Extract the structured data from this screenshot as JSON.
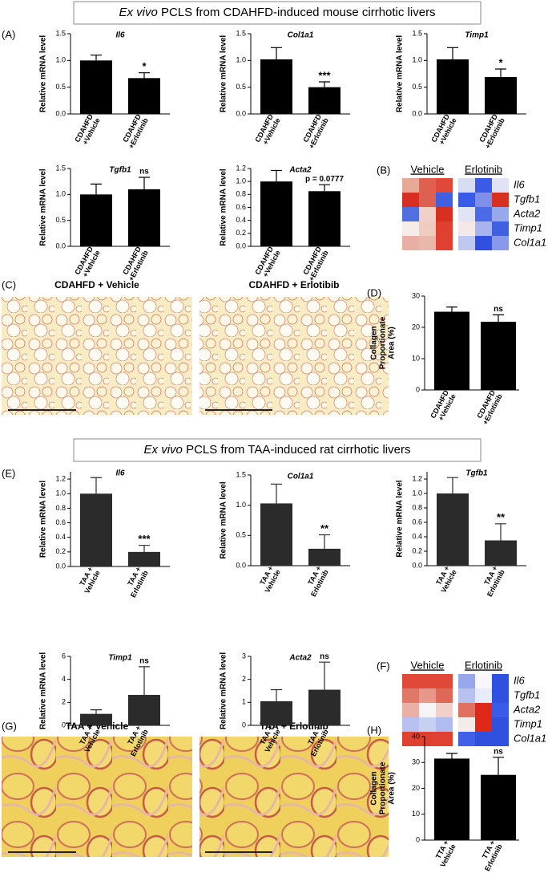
{
  "headers": [
    {
      "italic": "Ex vivo",
      "text": "PCLS from CDAHFD-induced mouse cirrhotic livers"
    },
    {
      "italic": "Ex vivo",
      "text": "PCLS from TAA-induced rat cirrhotic livers"
    }
  ],
  "panels": [
    "(A)",
    "(B)",
    "(C)",
    "(D)",
    "(E)",
    "(F)",
    "(G)",
    "(H)"
  ],
  "micrographs": [
    "CDAHFD + Vehicle",
    "CDAHFD + Erlotibib",
    "TAA + Vehicle",
    "TAA + Erlotinib"
  ],
  "chart_data": [
    {
      "type": "bar",
      "title": "Il6",
      "y_label": [
        "Relative mRNA level"
      ],
      "categories": [
        [
          "CDAHFD",
          "+Vehicle"
        ],
        [
          "CDAHFD",
          "+Erlotinib"
        ]
      ],
      "values": [
        1.0,
        0.67
      ],
      "errors": [
        0.1,
        0.1
      ],
      "color": "#000000",
      "ylim": [
        0,
        1.5
      ],
      "yticks": [
        {
          "value": 0,
          "label": "0.0"
        },
        {
          "value": 0.5,
          "label": "0.5"
        },
        {
          "value": 1,
          "label": "1.0"
        },
        {
          "value": 1.5,
          "label": "1.5"
        }
      ],
      "annotation": "*",
      "annotation_color": "#e8372c"
    },
    {
      "type": "bar",
      "title": "Col1a1",
      "y_label": [
        "Relative mRNA level"
      ],
      "categories": [
        [
          "CDAHFD",
          "+Vehicle"
        ],
        [
          "CDAHFD",
          "+Erlotinib"
        ]
      ],
      "values": [
        1.02,
        0.5
      ],
      "errors": [
        0.22,
        0.1
      ],
      "color": "#000000",
      "ylim": [
        0,
        1.5
      ],
      "yticks": [
        {
          "value": 0,
          "label": "0.0"
        },
        {
          "value": 0.5,
          "label": "0.5"
        },
        {
          "value": 1,
          "label": "1.0"
        },
        {
          "value": 1.5,
          "label": "1.5"
        }
      ],
      "annotation": "***",
      "annotation_color": "#e8372c"
    },
    {
      "type": "bar",
      "title": "Timp1",
      "y_label": [
        "Relative mRNA level"
      ],
      "categories": [
        [
          "CDAHFD",
          "+Vehicle"
        ],
        [
          "CDAHFD",
          "+Erlotinib"
        ]
      ],
      "values": [
        1.02,
        0.69
      ],
      "errors": [
        0.22,
        0.15
      ],
      "color": "#000000",
      "ylim": [
        0,
        1.5
      ],
      "yticks": [
        {
          "value": 0,
          "label": "0.0"
        },
        {
          "value": 0.5,
          "label": "0.5"
        },
        {
          "value": 1,
          "label": "1.0"
        },
        {
          "value": 1.5,
          "label": "1.5"
        }
      ],
      "annotation": "*",
      "annotation_color": "#e8372c"
    },
    {
      "type": "bar",
      "title": "Tgfb1",
      "y_label": [
        "Relative mRNA level"
      ],
      "categories": [
        [
          "CDAHFD",
          "+Vehicle"
        ],
        [
          "CDAHFD",
          "+Erlotinib"
        ]
      ],
      "values": [
        1.0,
        1.1
      ],
      "errors": [
        0.2,
        0.23
      ],
      "color": "#000000",
      "ylim": [
        0,
        1.5
      ],
      "yticks": [
        {
          "value": 0,
          "label": "0.0"
        },
        {
          "value": 0.5,
          "label": "0.5"
        },
        {
          "value": 1,
          "label": "1.0"
        },
        {
          "value": 1.5,
          "label": "1.5"
        }
      ],
      "annotation": "ns",
      "annotation_color": "#000000"
    },
    {
      "type": "bar",
      "title": "Acta2",
      "y_label": [
        "Relative mRNA level"
      ],
      "categories": [
        [
          "CDAHFD",
          "+Vehicle"
        ],
        [
          "CDAHFD",
          "+Erlotinib"
        ]
      ],
      "values": [
        1.0,
        0.85
      ],
      "errors": [
        0.17,
        0.1
      ],
      "color": "#000000",
      "ylim": [
        0,
        1.2
      ],
      "yticks": [
        {
          "value": 0,
          "label": "0.0"
        },
        {
          "value": 0.2,
          "label": "0.2"
        },
        {
          "value": 0.4,
          "label": "0.4"
        },
        {
          "value": 0.6,
          "label": "0.6"
        },
        {
          "value": 0.8,
          "label": "0.8"
        },
        {
          "value": 1,
          "label": "1.0"
        },
        {
          "value": 1.2,
          "label": "1.2"
        }
      ],
      "annotation": "p = 0.0777",
      "annotation_color": "#000000"
    },
    {
      "type": "heatmap",
      "groups": [
        "Vehicle",
        "Erlotinib"
      ],
      "rows": [
        "Il6",
        "Tgfb1",
        "Acta2",
        "Timp1",
        "Col1a1"
      ],
      "cells": [
        [
          "#e8a898",
          "#e06050",
          "#e0483a",
          "#d8dcf2",
          "#3a5ae8",
          "#dfe3f5"
        ],
        [
          "#d83020",
          "#dd6050",
          "#4060e0",
          "#3a5ae8",
          "#8090e8",
          "#d83020"
        ],
        [
          "#5070e0",
          "#f0d0c8",
          "#d83020",
          "#e0e4f4",
          "#4a6ae8",
          "#98a8ec"
        ],
        [
          "#f6ece8",
          "#f0cbc0",
          "#e04030",
          "#f4e8e8",
          "#a8b4ee",
          "#4060e0"
        ],
        [
          "#e8b0a4",
          "#e8b8ac",
          "#e04030",
          "#c0c8f0",
          "#3050e0",
          "#8898ea"
        ]
      ]
    },
    {
      "type": "bar",
      "y_label": [
        "Collagen",
        "Proportionate",
        "Area (%)"
      ],
      "categories": [
        [
          "CDAHFD",
          "+Vehicle"
        ],
        [
          "CDAHFD",
          "+Erlotinib"
        ]
      ],
      "values": [
        25,
        21.8
      ],
      "errors": [
        1.5,
        2.2
      ],
      "color": "#000000",
      "ylim": [
        0,
        30
      ],
      "yticks": [
        0,
        10,
        20,
        30
      ],
      "annotation": "ns",
      "annotation_color": "#000000"
    },
    {
      "type": "bar",
      "title": "Il6",
      "y_label": [
        "Relative mRNA level"
      ],
      "categories": [
        [
          "TAA +",
          "Vehicle"
        ],
        [
          "TAA +",
          "Erlotinib"
        ]
      ],
      "values": [
        1.0,
        0.2
      ],
      "errors": [
        0.22,
        0.09
      ],
      "color": "#2b2b2b",
      "ylim": [
        0,
        1.3
      ],
      "yticks": [
        {
          "value": 0,
          "label": "0.0"
        },
        {
          "value": 0.2,
          "label": "0.2"
        },
        {
          "value": 0.4,
          "label": "0.4"
        },
        {
          "value": 0.6,
          "label": "0.6"
        },
        {
          "value": 0.8,
          "label": "0.8"
        },
        {
          "value": 1,
          "label": "1.0"
        },
        {
          "value": 1.2,
          "label": "1.2"
        }
      ],
      "annotation": "***",
      "annotation_color": "#e8372c"
    },
    {
      "type": "bar",
      "title": "Col1a1",
      "y_label": [
        "Relative mRNA level"
      ],
      "categories": [
        [
          "TAA +",
          "Vehicle"
        ],
        [
          "TAA +",
          "Erlotinib"
        ]
      ],
      "values": [
        1.03,
        0.28
      ],
      "errors": [
        0.32,
        0.23
      ],
      "color": "#2b2b2b",
      "ylim": [
        0,
        1.5
      ],
      "yticks": [
        {
          "value": 0,
          "label": "0.0"
        },
        {
          "value": 0.5,
          "label": "0.5"
        },
        {
          "value": 1,
          "label": "1.0"
        },
        {
          "value": 1.5,
          "label": "1.5"
        }
      ],
      "annotation": "**",
      "annotation_color": "#e8372c"
    },
    {
      "type": "bar",
      "title": "Tgfb1",
      "y_label": [
        "Relative mRNA level"
      ],
      "categories": [
        [
          "TAA +",
          "Vehicle"
        ],
        [
          "TAA +",
          "Erlotinib"
        ]
      ],
      "values": [
        1.0,
        0.35
      ],
      "errors": [
        0.22,
        0.23
      ],
      "color": "#2b2b2b",
      "ylim": [
        0,
        1.3
      ],
      "yticks": [
        {
          "value": 0,
          "label": "0.0"
        },
        {
          "value": 0.2,
          "label": "0.2"
        },
        {
          "value": 0.4,
          "label": "0.4"
        },
        {
          "value": 0.6,
          "label": "0.6"
        },
        {
          "value": 0.8,
          "label": "0.8"
        },
        {
          "value": 1,
          "label": "1.0"
        },
        {
          "value": 1.2,
          "label": "1.2"
        }
      ],
      "annotation": "**",
      "annotation_color": "#e8372c"
    },
    {
      "type": "bar",
      "title": "Timp1",
      "y_label": [
        "Relative mRNA level"
      ],
      "categories": [
        [
          "TAA +",
          "Vehicle"
        ],
        [
          "TAA +",
          "Erlotinib"
        ]
      ],
      "values": [
        1.0,
        2.65
      ],
      "errors": [
        0.35,
        2.45
      ],
      "color": "#2b2b2b",
      "ylim": [
        0,
        6
      ],
      "yticks": [
        0,
        2,
        4,
        6
      ],
      "annotation": "ns",
      "annotation_color": "#000000"
    },
    {
      "type": "bar",
      "title": "Acta2",
      "y_label": [
        "Relative mRNA level"
      ],
      "categories": [
        [
          "TAA +",
          "Vehicle"
        ],
        [
          "TAA +",
          "Erlotinib"
        ]
      ],
      "values": [
        1.05,
        1.55
      ],
      "errors": [
        0.5,
        1.2
      ],
      "color": "#2b2b2b",
      "ylim": [
        0,
        3
      ],
      "yticks": [
        0,
        1,
        2,
        3
      ],
      "annotation": "ns",
      "annotation_color": "#000000"
    },
    {
      "type": "heatmap",
      "groups": [
        "Vehicle",
        "Erlotinib"
      ],
      "rows": [
        "Il6",
        "Tgfb1",
        "Acta2",
        "Timp1",
        "Col1a1"
      ],
      "cells": [
        [
          "#e04838",
          "#e04838",
          "#e04838",
          "#98a6ec",
          "#f8f8fc",
          "#3050e0"
        ],
        [
          "#e07868",
          "#e89888",
          "#e06858",
          "#b8c2f0",
          "#e8ecf8",
          "#3050e0"
        ],
        [
          "#eab0a4",
          "#f6f4f4",
          "#f0d0c8",
          "#e07060",
          "#e02818",
          "#3a5ae8"
        ],
        [
          "#b8c0f0",
          "#c8d0f2",
          "#b0bcf0",
          "#f4ece8",
          "#e02818",
          "#3050e0"
        ],
        [
          "#e04030",
          "#e04030",
          "#e04030",
          "#4060e8",
          "#3050e0",
          "#3050e0"
        ]
      ]
    },
    {
      "type": "bar",
      "y_label": [
        "Collagen",
        "Proportionate",
        "Area (%)"
      ],
      "categories": [
        [
          "TTA +",
          "Vehicle"
        ],
        [
          "TTA +",
          "Erlotinib"
        ]
      ],
      "values": [
        31.5,
        25.2
      ],
      "errors": [
        2,
        6.8
      ],
      "color": "#000000",
      "ylim": [
        0,
        40
      ],
      "yticks": [
        0,
        10,
        20,
        30,
        40
      ],
      "annotation": "ns",
      "annotation_color": "#000000"
    }
  ]
}
